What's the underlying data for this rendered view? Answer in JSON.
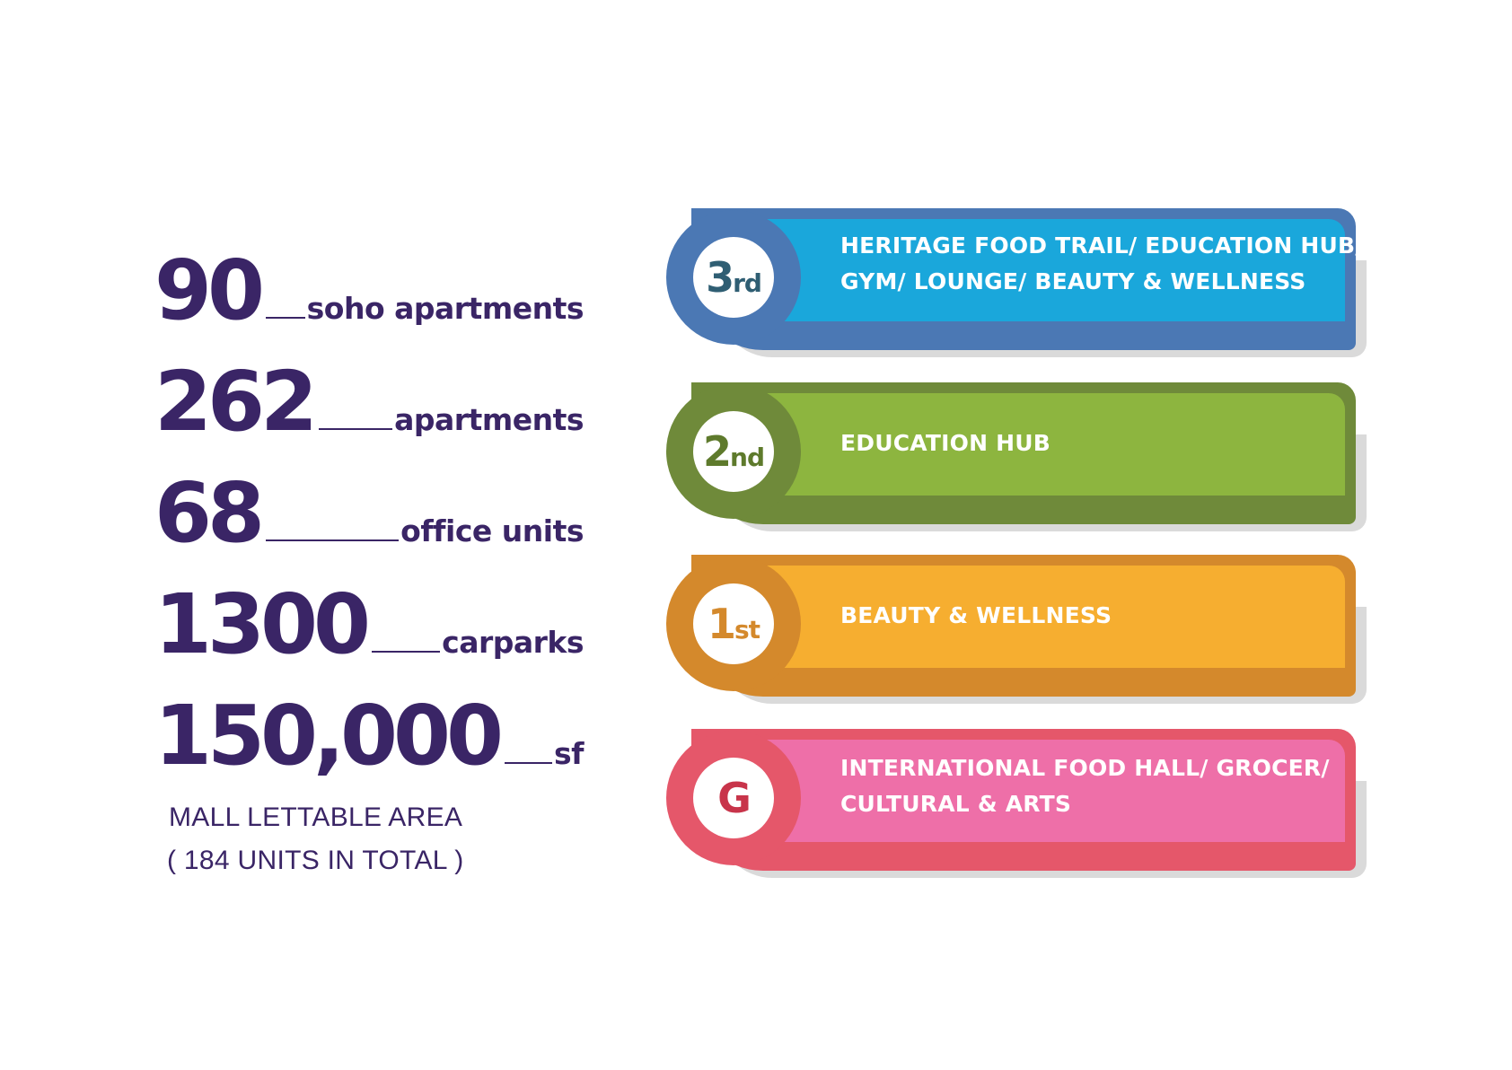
{
  "stats": [
    {
      "number": "90",
      "label": "soho apartments"
    },
    {
      "number": "262",
      "label": "apartments"
    },
    {
      "number": "68",
      "label": "office units"
    },
    {
      "number": "1300",
      "label": "carparks"
    },
    {
      "number": "150,000",
      "label": "sf"
    }
  ],
  "note": {
    "line1": "MALL LETTABLE AREA",
    "line2": "( 184 UNITS IN TOTAL )"
  },
  "floors": [
    {
      "badge_main": "3",
      "badge_suffix": "rd",
      "lines": [
        "HERITAGE FOOD TRAIL/ EDUCATION HUB/",
        "GYM/ LOUNGE/ BEAUTY & WELLNESS"
      ],
      "color": "#1aa7db",
      "dark_color": "#4b78b4"
    },
    {
      "badge_main": "2",
      "badge_suffix": "nd",
      "lines": [
        "EDUCATION HUB"
      ],
      "color": "#8db53f",
      "dark_color": "#6f8a3a"
    },
    {
      "badge_main": "1",
      "badge_suffix": "st",
      "lines": [
        "BEAUTY & WELLNESS"
      ],
      "color": "#f6ae30",
      "dark_color": "#d4892c"
    },
    {
      "badge_main": "G",
      "badge_suffix": "",
      "lines": [
        "INTERNATIONAL FOOD HALL/ GROCER/",
        "CULTURAL & ARTS"
      ],
      "color": "#ee6fa8",
      "dark_color": "#e5576a"
    }
  ],
  "text_color": "#3a2566"
}
